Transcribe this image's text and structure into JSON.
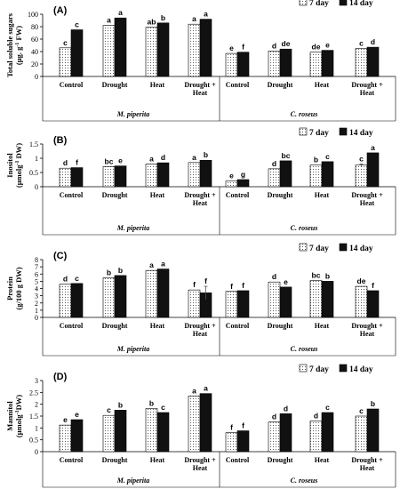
{
  "legend": [
    "7 day",
    "14 day"
  ],
  "species": [
    "M. piperita",
    "C. roseus"
  ],
  "chart_data": [
    {
      "type": "bar",
      "panel": "(A)",
      "ylabel": [
        "Total soluble sugars",
        "(µg. g-1 FW)"
      ],
      "ylim": [
        0,
        100
      ],
      "yticks": [
        0,
        20,
        40,
        60,
        80,
        100
      ],
      "categories": [
        [
          "Control"
        ],
        [
          "Drought"
        ],
        [
          "Heat"
        ],
        [
          "Drought +",
          "Heat"
        ],
        [
          "Control"
        ],
        [
          "Drought"
        ],
        [
          "Heat"
        ],
        [
          "Drought +",
          "Heat"
        ]
      ],
      "series": [
        {
          "name": "7 day",
          "values": [
            46,
            82,
            79,
            84,
            37,
            41,
            39,
            45
          ],
          "errors": [
            0,
            0,
            0,
            0,
            0,
            0,
            0,
            0
          ],
          "letters": [
            "c",
            "a",
            "ab",
            "a",
            "e",
            "d",
            "de",
            "c"
          ]
        },
        {
          "name": "14 day",
          "values": [
            75,
            94,
            86,
            92,
            39,
            44,
            42,
            47
          ],
          "errors": [
            0,
            0,
            0,
            0,
            0,
            0,
            0,
            0
          ],
          "letters": [
            "c",
            "a",
            "b",
            "a",
            "f",
            "de",
            "e",
            "d"
          ]
        }
      ]
    },
    {
      "type": "bar",
      "panel": "(B)",
      "ylabel": [
        "Inositol",
        "(µmolg-1 DW)"
      ],
      "ylim": [
        0,
        1.5
      ],
      "yticks": [
        0,
        0.5,
        1,
        1.5
      ],
      "categories": [
        [
          "Control"
        ],
        [
          "Drought"
        ],
        [
          "Heat"
        ],
        [
          "Drought +",
          "Heat"
        ],
        [
          "Control"
        ],
        [
          "Drought"
        ],
        [
          "Heat"
        ],
        [
          "Drought +",
          "Heat"
        ]
      ],
      "series": [
        {
          "name": "7 day",
          "values": [
            0.65,
            0.71,
            0.8,
            0.85,
            0.2,
            0.63,
            0.76,
            0.76
          ],
          "errors": [
            0,
            0,
            0,
            0,
            0,
            0,
            0,
            0.04
          ],
          "letters": [
            "d",
            "bc",
            "a",
            "a",
            "e",
            "d",
            "b",
            "c"
          ]
        },
        {
          "name": "14 day",
          "values": [
            0.67,
            0.73,
            0.84,
            0.93,
            0.25,
            0.91,
            0.88,
            1.19
          ],
          "errors": [
            0,
            0,
            0,
            0,
            0,
            0,
            0,
            0
          ],
          "letters": [
            "f",
            "e",
            "d",
            "b",
            "g",
            "bc",
            "c",
            "a"
          ]
        }
      ]
    },
    {
      "type": "bar",
      "panel": "(C)",
      "ylabel": [
        "Protein",
        "(g/100 g DW)"
      ],
      "ylim": [
        0,
        8
      ],
      "yticks": [
        0,
        1,
        2,
        3,
        4,
        5,
        6,
        7,
        8
      ],
      "categories": [
        [
          "Control"
        ],
        [
          "Drought"
        ],
        [
          "Heat"
        ],
        [
          "Drought +",
          "Heat"
        ],
        [
          "Control"
        ],
        [
          "Drought"
        ],
        [
          "Heat"
        ],
        [
          "Drought +",
          "Heat"
        ]
      ],
      "series": [
        {
          "name": "7 day",
          "values": [
            4.6,
            5.5,
            6.5,
            3.8,
            3.6,
            4.9,
            5.1,
            4.3
          ],
          "errors": [
            0,
            0,
            0,
            0,
            0,
            0,
            0,
            0
          ],
          "letters": [
            "d",
            "b",
            "a",
            "f",
            "f",
            "d",
            "bc",
            "de"
          ]
        },
        {
          "name": "14 day",
          "values": [
            4.7,
            5.8,
            6.7,
            3.4,
            3.7,
            4.2,
            5.0,
            3.7
          ],
          "errors": [
            0,
            0,
            0,
            0.9,
            0,
            0,
            0,
            0
          ],
          "letters": [
            "c",
            "b",
            "a",
            "f",
            "f",
            "e",
            "b",
            "f"
          ]
        }
      ]
    },
    {
      "type": "bar",
      "panel": "(D)",
      "ylabel": [
        "Mannitol",
        "(µmolg-1DW)"
      ],
      "ylim": [
        0,
        3
      ],
      "yticks": [
        0,
        0.5,
        1,
        1.5,
        2,
        2.5,
        3
      ],
      "categories": [
        [
          "Control"
        ],
        [
          "Drought"
        ],
        [
          "Heat"
        ],
        [
          "Drought +",
          "Heat"
        ],
        [
          "Control"
        ],
        [
          "Drought"
        ],
        [
          "Heat"
        ],
        [
          "Drought +",
          "Heat"
        ]
      ],
      "series": [
        {
          "name": "7 day",
          "values": [
            1.12,
            1.53,
            1.82,
            2.35,
            0.8,
            1.25,
            1.3,
            1.5
          ],
          "errors": [
            0,
            0,
            0,
            0,
            0,
            0,
            0,
            0
          ],
          "letters": [
            "e",
            "c",
            "b",
            "a",
            "f",
            "d",
            "d",
            "c"
          ]
        },
        {
          "name": "14 day",
          "values": [
            1.35,
            1.75,
            1.65,
            2.45,
            0.88,
            1.6,
            1.65,
            1.8
          ],
          "errors": [
            0,
            0,
            0,
            0,
            0,
            0,
            0,
            0
          ],
          "letters": [
            "e",
            "b",
            "c",
            "a",
            "f",
            "d",
            "c",
            "b"
          ]
        }
      ]
    }
  ]
}
